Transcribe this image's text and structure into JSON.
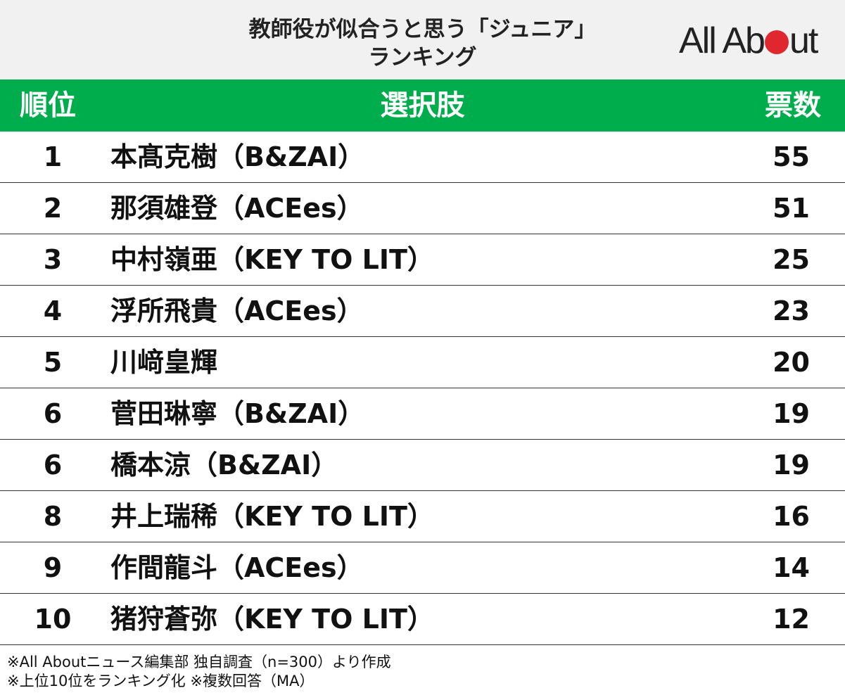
{
  "header": {
    "title_line1": "教師役が似合うと思う「ジュニア」",
    "title_line2": "ランキング",
    "logo_left": "All Ab",
    "logo_right": "ut",
    "logo_dot_color": "#e0262f"
  },
  "table": {
    "header_color": "#00ad4c",
    "columns": {
      "rank": "順位",
      "choice": "選択肢",
      "votes": "票数"
    },
    "rows": [
      {
        "rank": "1",
        "name": "本髙克樹（B&ZAI）",
        "votes": "55"
      },
      {
        "rank": "2",
        "name": "那須雄登（ACEes）",
        "votes": "51"
      },
      {
        "rank": "3",
        "name": "中村嶺亜（KEY TO LIT）",
        "votes": "25"
      },
      {
        "rank": "4",
        "name": "浮所飛貴（ACEes）",
        "votes": "23"
      },
      {
        "rank": "5",
        "name": "川﨑皇輝",
        "votes": "20"
      },
      {
        "rank": "6",
        "name": "菅田琳寧（B&ZAI）",
        "votes": "19"
      },
      {
        "rank": "6",
        "name": "橋本涼（B&ZAI）",
        "votes": "19"
      },
      {
        "rank": "8",
        "name": "井上瑞稀（KEY TO LIT）",
        "votes": "16"
      },
      {
        "rank": "9",
        "name": "作間龍斗（ACEes）",
        "votes": "14"
      },
      {
        "rank": "10",
        "name": "猪狩蒼弥（KEY TO LIT）",
        "votes": "12"
      }
    ]
  },
  "footnotes": {
    "line1": "※All Aboutニュース編集部 独自調査（n=300）より作成",
    "line2": "※上位10位をランキング化 ※複数回答（MA）"
  }
}
